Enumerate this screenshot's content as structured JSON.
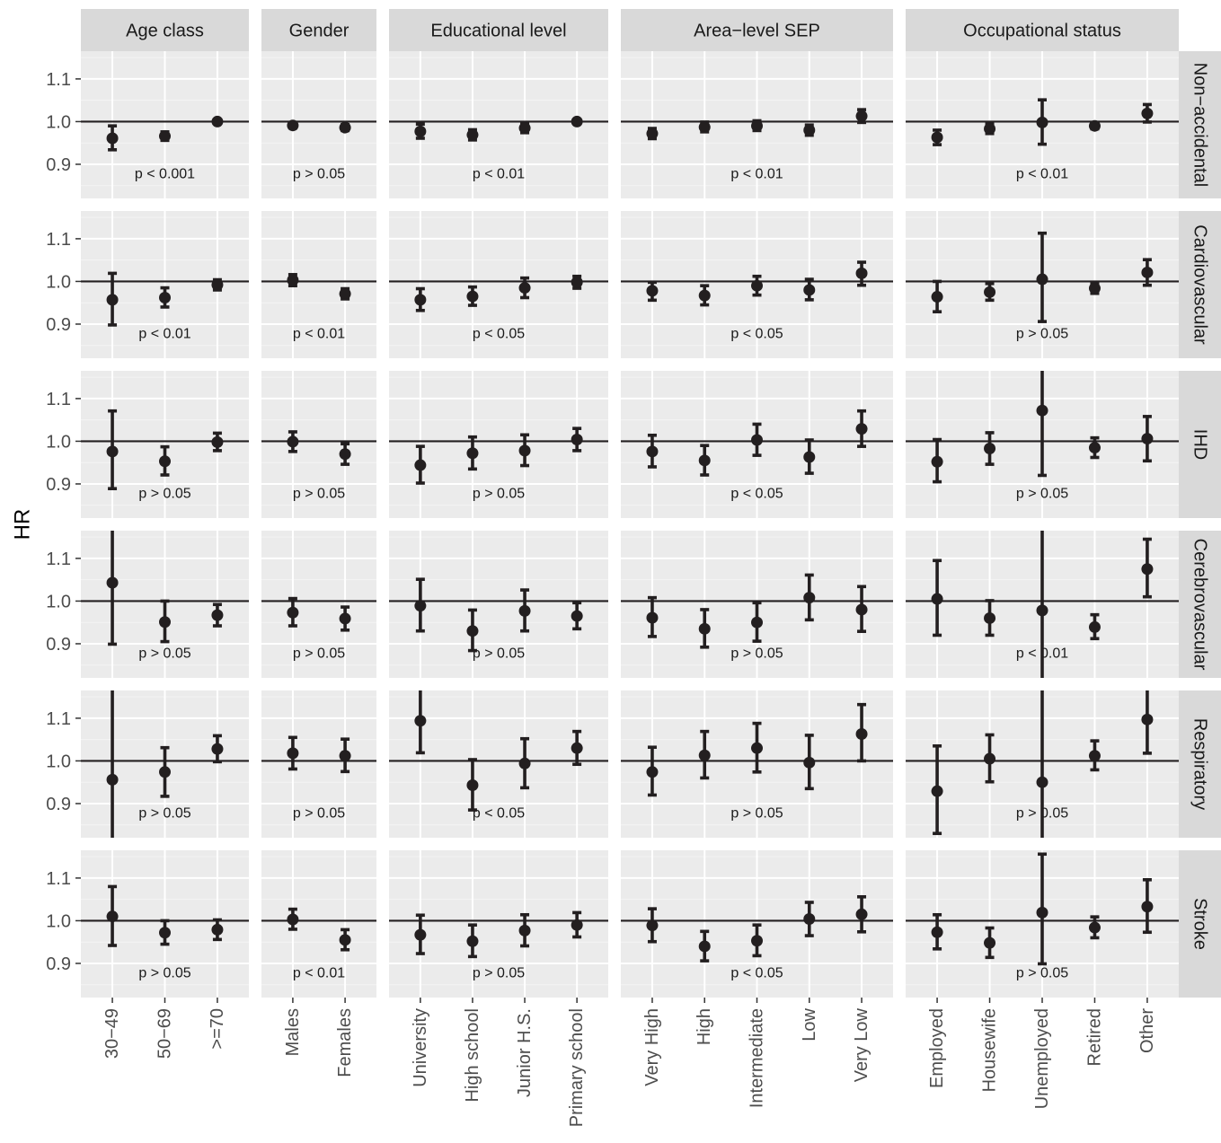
{
  "chart_data": {
    "type": "scatter",
    "variant": "faceted point-and-errorbar plot",
    "ylabel": "HR",
    "xlabel": "",
    "ylim": [
      0.82,
      1.165
    ],
    "yticks": [
      0.9,
      1.0,
      1.1
    ],
    "ytick_labels": [
      "0.9",
      "1.0",
      "1.1"
    ],
    "reference_line": 1.0,
    "grid": true,
    "theme": {
      "panel_bg": "#ebebeb",
      "strip_bg": "#d9d9d9",
      "grid_major": "#ffffff",
      "grid_minor": "#f4f4f4",
      "mark_color": "#231f20",
      "text_color": "#1a1a1a"
    },
    "columns": [
      {
        "label": "Age class",
        "categories": [
          "30−49",
          "50−69",
          ">=70"
        ]
      },
      {
        "label": "Gender",
        "categories": [
          "Males",
          "Females"
        ]
      },
      {
        "label": "Educational level",
        "categories": [
          "University",
          "High school",
          "Junior H.S.",
          "Primary school"
        ]
      },
      {
        "label": "Area−level SEP",
        "categories": [
          "Very High",
          "High",
          "Intermediate",
          "Low",
          "Very Low"
        ]
      },
      {
        "label": "Occupational status",
        "categories": [
          "Employed",
          "Housewife",
          "Unemployed",
          "Retired",
          "Other"
        ]
      }
    ],
    "rows": [
      {
        "label": "Non−accidental",
        "p_values": [
          "p < 0.001",
          "p > 0.05",
          "p < 0.01",
          "p < 0.01",
          "p < 0.01"
        ],
        "cells": [
          [
            [
              0.961,
              0.934,
              0.99
            ],
            [
              0.966,
              0.956,
              0.976
            ],
            [
              1.0,
              0.996,
              1.004
            ]
          ],
          [
            [
              0.991,
              0.985,
              0.997
            ],
            [
              0.986,
              0.979,
              0.993
            ]
          ],
          [
            [
              0.977,
              0.961,
              0.994
            ],
            [
              0.969,
              0.957,
              0.981
            ],
            [
              0.985,
              0.974,
              0.996
            ],
            [
              1.0,
              0.995,
              1.005
            ]
          ],
          [
            [
              0.972,
              0.96,
              0.984
            ],
            [
              0.987,
              0.976,
              0.999
            ],
            [
              0.99,
              0.979,
              1.002
            ],
            [
              0.98,
              0.968,
              0.992
            ],
            [
              1.013,
              0.998,
              1.028
            ]
          ],
          [
            [
              0.963,
              0.946,
              0.98
            ],
            [
              0.983,
              0.972,
              0.994
            ],
            [
              0.998,
              0.947,
              1.051
            ],
            [
              0.99,
              0.983,
              0.997
            ],
            [
              1.019,
              0.999,
              1.04
            ]
          ]
        ]
      },
      {
        "label": "Cardiovascular",
        "p_values": [
          "p < 0.01",
          "p < 0.01",
          "p < 0.05",
          "p < 0.05",
          "p > 0.05"
        ],
        "cells": [
          [
            [
              0.957,
              0.898,
              1.019
            ],
            [
              0.962,
              0.94,
              0.985
            ],
            [
              0.992,
              0.98,
              1.004
            ]
          ],
          [
            [
              1.003,
              0.99,
              1.016
            ],
            [
              0.971,
              0.959,
              0.983
            ]
          ],
          [
            [
              0.957,
              0.932,
              0.983
            ],
            [
              0.965,
              0.944,
              0.987
            ],
            [
              0.985,
              0.962,
              1.008
            ],
            [
              0.998,
              0.984,
              1.012
            ]
          ],
          [
            [
              0.978,
              0.956,
              0.998
            ],
            [
              0.967,
              0.945,
              0.99
            ],
            [
              0.99,
              0.968,
              1.012
            ],
            [
              0.98,
              0.957,
              1.005
            ],
            [
              1.019,
              0.991,
              1.045
            ]
          ],
          [
            [
              0.964,
              0.929,
              1.0
            ],
            [
              0.975,
              0.956,
              0.995
            ],
            [
              1.005,
              0.906,
              1.113
            ],
            [
              0.984,
              0.972,
              0.996
            ],
            [
              1.021,
              0.991,
              1.051
            ]
          ]
        ]
      },
      {
        "label": "IHD",
        "p_values": [
          "p > 0.05",
          "p > 0.05",
          "p > 0.05",
          "p < 0.05",
          "p > 0.05"
        ],
        "cells": [
          [
            [
              0.976,
              0.889,
              1.071
            ],
            [
              0.953,
              0.921,
              0.987
            ],
            [
              0.998,
              0.978,
              1.019
            ]
          ],
          [
            [
              0.999,
              0.976,
              1.022
            ],
            [
              0.97,
              0.946,
              0.994
            ]
          ],
          [
            [
              0.944,
              0.902,
              0.988
            ],
            [
              0.972,
              0.935,
              1.01
            ],
            [
              0.978,
              0.943,
              1.015
            ],
            [
              1.004,
              0.978,
              1.03
            ]
          ],
          [
            [
              0.976,
              0.94,
              1.014
            ],
            [
              0.955,
              0.921,
              0.99
            ],
            [
              1.003,
              0.967,
              1.04
            ],
            [
              0.963,
              0.925,
              1.003
            ],
            [
              1.029,
              0.988,
              1.071
            ]
          ],
          [
            [
              0.952,
              0.905,
              1.004
            ],
            [
              0.983,
              0.946,
              1.02
            ],
            [
              1.072,
              0.92,
              1.25
            ],
            [
              0.985,
              0.962,
              1.008
            ],
            [
              1.006,
              0.954,
              1.058
            ]
          ]
        ]
      },
      {
        "label": "Cerebrovascular",
        "p_values": [
          "p > 0.05",
          "p > 0.05",
          "p > 0.05",
          "p > 0.05",
          "p < 0.01"
        ],
        "cells": [
          [
            [
              1.043,
              0.899,
              1.21
            ],
            [
              0.951,
              0.905,
              1.0
            ],
            [
              0.967,
              0.942,
              0.992
            ]
          ],
          [
            [
              0.973,
              0.942,
              1.006
            ],
            [
              0.959,
              0.932,
              0.986
            ]
          ],
          [
            [
              0.989,
              0.93,
              1.051
            ],
            [
              0.93,
              0.884,
              0.979
            ],
            [
              0.977,
              0.93,
              1.026
            ],
            [
              0.965,
              0.935,
              0.996
            ]
          ],
          [
            [
              0.961,
              0.917,
              1.008
            ],
            [
              0.935,
              0.892,
              0.98
            ],
            [
              0.95,
              0.906,
              0.996
            ],
            [
              1.008,
              0.956,
              1.061
            ],
            [
              0.98,
              0.929,
              1.034
            ]
          ],
          [
            [
              1.005,
              0.92,
              1.095
            ],
            [
              0.96,
              0.92,
              1.001
            ],
            [
              0.978,
              0.79,
              1.21
            ],
            [
              0.939,
              0.912,
              0.968
            ],
            [
              1.075,
              1.01,
              1.145
            ]
          ]
        ]
      },
      {
        "label": "Respiratory",
        "p_values": [
          "p > 0.05",
          "p > 0.05",
          "p < 0.05",
          "p > 0.05",
          "p > 0.05"
        ],
        "cells": [
          [
            [
              0.956,
              0.79,
              1.19
            ],
            [
              0.974,
              0.917,
              1.031
            ],
            [
              1.028,
              0.998,
              1.059
            ]
          ],
          [
            [
              1.018,
              0.981,
              1.055
            ],
            [
              1.012,
              0.975,
              1.051
            ]
          ],
          [
            [
              1.094,
              1.019,
              1.18
            ],
            [
              0.943,
              0.885,
              1.003
            ],
            [
              0.994,
              0.937,
              1.052
            ],
            [
              1.03,
              0.992,
              1.069
            ]
          ],
          [
            [
              0.974,
              0.92,
              1.032
            ],
            [
              1.013,
              0.96,
              1.069
            ],
            [
              1.03,
              0.974,
              1.088
            ],
            [
              0.996,
              0.935,
              1.06
            ],
            [
              1.063,
              1.0,
              1.132
            ]
          ],
          [
            [
              0.929,
              0.83,
              1.035
            ],
            [
              1.005,
              0.951,
              1.061
            ],
            [
              0.95,
              0.78,
              1.21
            ],
            [
              1.012,
              0.979,
              1.047
            ],
            [
              1.097,
              1.018,
              1.18
            ]
          ]
        ]
      },
      {
        "label": "Stroke",
        "p_values": [
          "p > 0.05",
          "p < 0.01",
          "p > 0.05",
          "p < 0.05",
          "p > 0.05"
        ],
        "cells": [
          [
            [
              1.01,
              0.942,
              1.08
            ],
            [
              0.972,
              0.945,
              1.0
            ],
            [
              0.979,
              0.956,
              1.002
            ]
          ],
          [
            [
              1.003,
              0.98,
              1.027
            ],
            [
              0.955,
              0.932,
              0.979
            ]
          ],
          [
            [
              0.967,
              0.923,
              1.013
            ],
            [
              0.952,
              0.916,
              0.99
            ],
            [
              0.977,
              0.941,
              1.014
            ],
            [
              0.99,
              0.962,
              1.019
            ]
          ],
          [
            [
              0.989,
              0.951,
              1.028
            ],
            [
              0.94,
              0.906,
              0.975
            ],
            [
              0.953,
              0.918,
              0.99
            ],
            [
              1.004,
              0.965,
              1.043
            ],
            [
              1.015,
              0.974,
              1.056
            ]
          ],
          [
            [
              0.973,
              0.934,
              1.014
            ],
            [
              0.948,
              0.914,
              0.983
            ],
            [
              1.019,
              0.899,
              1.156
            ],
            [
              0.984,
              0.96,
              1.009
            ],
            [
              1.033,
              0.973,
              1.096
            ]
          ]
        ]
      }
    ]
  }
}
